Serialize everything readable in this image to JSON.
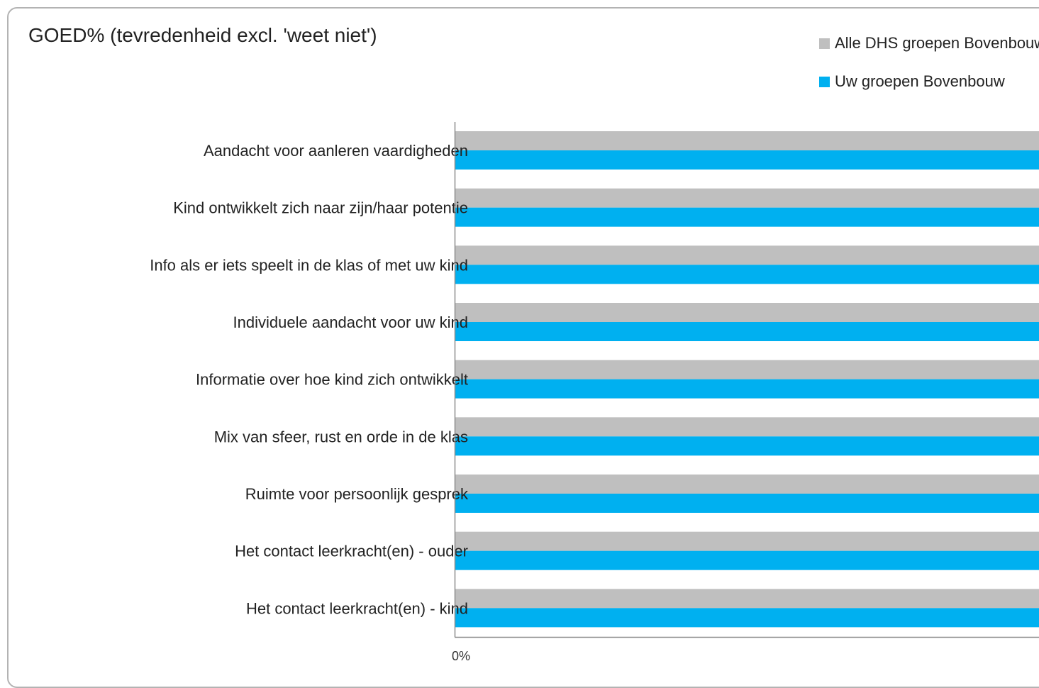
{
  "chart_data": {
    "type": "bar",
    "orientation": "horizontal",
    "title": "GOED% (tevredenheid excl. 'weet niet')",
    "categories": [
      "Aandacht voor aanleren vaardigheden",
      "Kind ontwikkelt zich naar zijn/haar potentie",
      "Info als er iets speelt in de klas of met uw kind",
      "Individuele aandacht voor uw kind",
      "Informatie over hoe kind zich ontwikkelt",
      "Mix van sfeer, rust en orde in de klas",
      "Ruimte voor persoonlijk gesprek",
      "Het contact leerkracht(en) - ouder",
      "Het contact leerkracht(en) - kind"
    ],
    "series": [
      {
        "name": "Alle DHS groepen Bovenbouw",
        "color": "#bfbfbf",
        "values": [
          100,
          100,
          100,
          100,
          100,
          100,
          100,
          100,
          100
        ]
      },
      {
        "name": "Uw groepen Bovenbouw",
        "color": "#00b0f0",
        "values": [
          100,
          100,
          100,
          100,
          100,
          100,
          100,
          100,
          100
        ]
      }
    ],
    "x_ticks": [
      "0%"
    ],
    "xlim": [
      0,
      100
    ],
    "grid": false,
    "legend_position": "top-right"
  }
}
